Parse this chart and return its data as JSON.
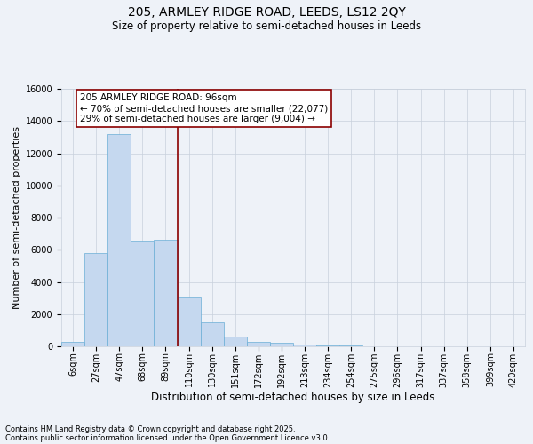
{
  "title_line1": "205, ARMLEY RIDGE ROAD, LEEDS, LS12 2QY",
  "title_line2": "Size of property relative to semi-detached houses in Leeds",
  "xlabel": "Distribution of semi-detached houses by size in Leeds",
  "ylabel": "Number of semi-detached properties",
  "categories": [
    "6sqm",
    "27sqm",
    "47sqm",
    "68sqm",
    "89sqm",
    "110sqm",
    "130sqm",
    "151sqm",
    "172sqm",
    "192sqm",
    "213sqm",
    "234sqm",
    "254sqm",
    "275sqm",
    "296sqm",
    "317sqm",
    "337sqm",
    "358sqm",
    "399sqm",
    "420sqm"
  ],
  "values": [
    270,
    5800,
    13200,
    6550,
    6600,
    3050,
    1500,
    580,
    300,
    220,
    130,
    50,
    80,
    10,
    5,
    5,
    5,
    5,
    5,
    5
  ],
  "bar_color": "#c5d8ef",
  "bar_edge_color": "#6aaed6",
  "vline_x_index": 4.5,
  "vline_color": "#8b0000",
  "annotation_text": "205 ARMLEY RIDGE ROAD: 96sqm\n← 70% of semi-detached houses are smaller (22,077)\n29% of semi-detached houses are larger (9,004) →",
  "ylim_max": 16000,
  "yticks": [
    0,
    2000,
    4000,
    6000,
    8000,
    10000,
    12000,
    14000,
    16000
  ],
  "grid_color": "#c8d0dc",
  "bg_color": "#eef2f8",
  "footer1": "Contains HM Land Registry data © Crown copyright and database right 2025.",
  "footer2": "Contains public sector information licensed under the Open Government Licence v3.0.",
  "title_fontsize": 10,
  "subtitle_fontsize": 8.5,
  "ylabel_fontsize": 8,
  "xlabel_fontsize": 8.5,
  "tick_fontsize": 7,
  "annot_fontsize": 7.5,
  "footer_fontsize": 6
}
